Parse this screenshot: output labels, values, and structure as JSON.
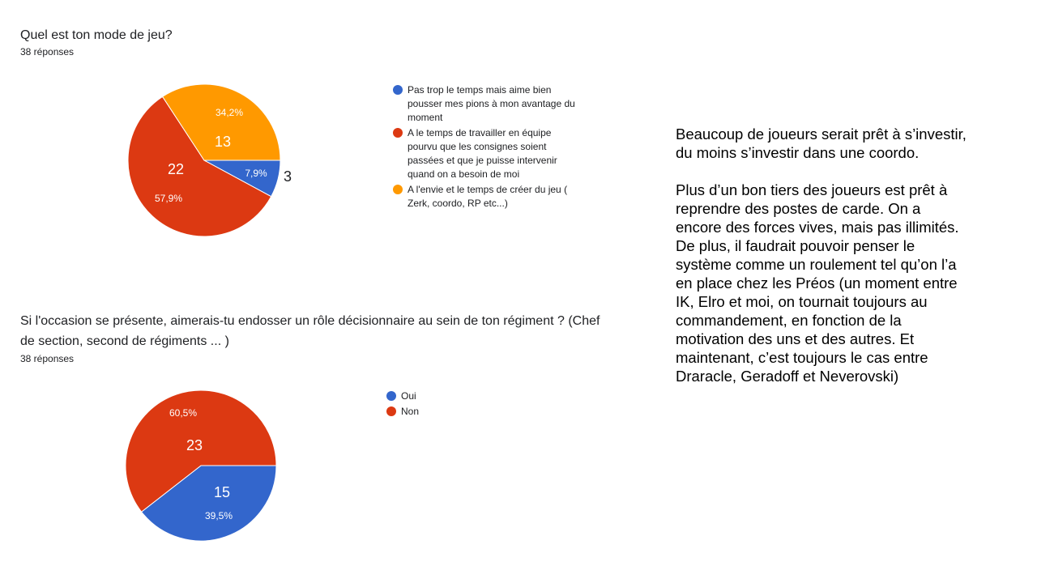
{
  "chart_data": [
    {
      "type": "pie",
      "title": "Quel est ton mode de jeu?",
      "subtitle": "38 réponses",
      "categories": [
        "Pas trop le temps mais aime bien pousser mes pions à mon avantage du moment",
        "A le temps de travailler en équipe pourvu que les consignes soient passées et que je puisse intervenir quand on a besoin de moi",
        "A l'envie et le temps de créer du jeu ( Zerk, coordo, RP etc...)"
      ],
      "values": [
        3,
        22,
        13
      ],
      "percentages": [
        7.9,
        57.9,
        34.2
      ],
      "percentage_labels": [
        "7,9%",
        "57,9%",
        "34,2%"
      ],
      "colors": [
        "#3366cc",
        "#dc3912",
        "#ff9900"
      ],
      "legend": "right"
    },
    {
      "type": "pie",
      "title": "Si l'occasion se présente, aimerais-tu endosser un rôle décisionnaire au sein de ton régiment ? (Chef de section, second de régiments ... )",
      "subtitle": "38 réponses",
      "categories": [
        "Oui",
        "Non"
      ],
      "values": [
        15,
        23
      ],
      "percentages": [
        39.5,
        60.5
      ],
      "percentage_labels": [
        "39,5%",
        "60,5%"
      ],
      "colors": [
        "#3366cc",
        "#dc3912"
      ],
      "legend": "right"
    }
  ],
  "notes": [
    "Beaucoup de joueurs serait prêt à s’investir, du moins s’investir dans une coordo.",
    "Plus d’un bon tiers des joueurs est prêt à reprendre des postes de carde. On a encore des forces vives, mais pas illimités.",
    "De plus, il faudrait pouvoir penser le système comme un roulement tel qu’on l’a en place chez les Préos (un moment entre IK, Elro et moi, on tournait toujours au commandement, en fonction de la motivation des uns et des autres. Et maintenant, c’est toujours le cas entre Draracle, Geradoff et Neverovski)"
  ]
}
